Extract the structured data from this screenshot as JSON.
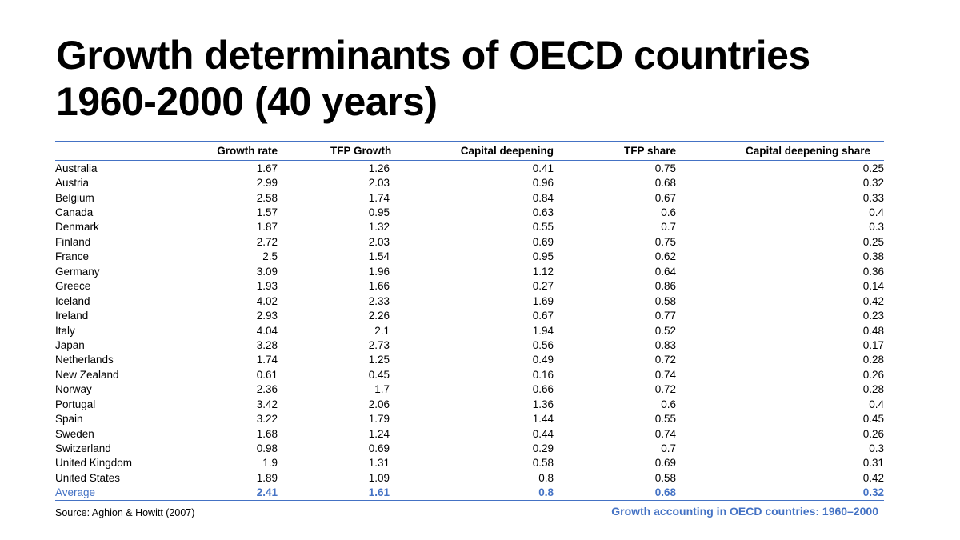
{
  "title": {
    "line1": "Growth determinants of OECD countries",
    "line2": "1960-2000 (40 years)"
  },
  "table": {
    "headers": [
      "",
      "Growth rate",
      "TFP Growth",
      "Capital deepening",
      "TFP share",
      "Capital deepening share"
    ],
    "rows": [
      [
        "Australia",
        "1.67",
        "1.26",
        "0.41",
        "0.75",
        "0.25"
      ],
      [
        "Austria",
        "2.99",
        "2.03",
        "0.96",
        "0.68",
        "0.32"
      ],
      [
        "Belgium",
        "2.58",
        "1.74",
        "0.84",
        "0.67",
        "0.33"
      ],
      [
        "Canada",
        "1.57",
        "0.95",
        "0.63",
        "0.6",
        "0.4"
      ],
      [
        "Denmark",
        "1.87",
        "1.32",
        "0.55",
        "0.7",
        "0.3"
      ],
      [
        "Finland",
        "2.72",
        "2.03",
        "0.69",
        "0.75",
        "0.25"
      ],
      [
        "France",
        "2.5",
        "1.54",
        "0.95",
        "0.62",
        "0.38"
      ],
      [
        "Germany",
        "3.09",
        "1.96",
        "1.12",
        "0.64",
        "0.36"
      ],
      [
        "Greece",
        "1.93",
        "1.66",
        "0.27",
        "0.86",
        "0.14"
      ],
      [
        "Iceland",
        "4.02",
        "2.33",
        "1.69",
        "0.58",
        "0.42"
      ],
      [
        "Ireland",
        "2.93",
        "2.26",
        "0.67",
        "0.77",
        "0.23"
      ],
      [
        "Italy",
        "4.04",
        "2.1",
        "1.94",
        "0.52",
        "0.48"
      ],
      [
        "Japan",
        "3.28",
        "2.73",
        "0.56",
        "0.83",
        "0.17"
      ],
      [
        "Netherlands",
        "1.74",
        "1.25",
        "0.49",
        "0.72",
        "0.28"
      ],
      [
        "New Zealand",
        "0.61",
        "0.45",
        "0.16",
        "0.74",
        "0.26"
      ],
      [
        "Norway",
        "2.36",
        "1.7",
        "0.66",
        "0.72",
        "0.28"
      ],
      [
        "Portugal",
        "3.42",
        "2.06",
        "1.36",
        "0.6",
        "0.4"
      ],
      [
        "Spain",
        "3.22",
        "1.79",
        "1.44",
        "0.55",
        "0.45"
      ],
      [
        "Sweden",
        "1.68",
        "1.24",
        "0.44",
        "0.74",
        "0.26"
      ],
      [
        "Switzerland",
        "0.98",
        "0.69",
        "0.29",
        "0.7",
        "0.3"
      ],
      [
        "United Kingdom",
        "1.9",
        "1.31",
        "0.58",
        "0.69",
        "0.31"
      ],
      [
        "United States",
        "1.89",
        "1.09",
        "0.8",
        "0.58",
        "0.42"
      ]
    ],
    "average": [
      "Average",
      "2.41",
      "1.61",
      "0.8",
      "0.68",
      "0.32"
    ]
  },
  "source": "Source: Aghion & Howitt (2007)",
  "caption": "Growth accounting in OECD countries: 1960–2000",
  "colors": {
    "accent": "#4472c4",
    "text": "#000000"
  }
}
